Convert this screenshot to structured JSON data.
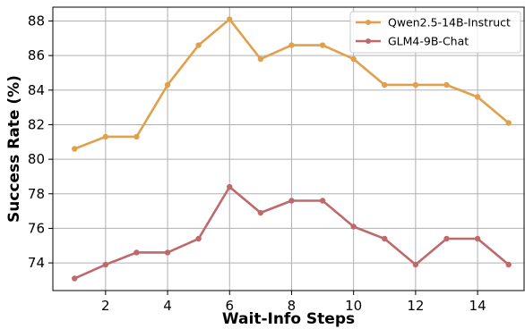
{
  "chart_data": {
    "type": "line",
    "title": "",
    "xlabel": "Wait-Info Steps",
    "ylabel": "Success Rate (%)",
    "x": [
      1,
      2,
      3,
      4,
      5,
      6,
      7,
      8,
      9,
      10,
      11,
      12,
      13,
      14,
      15
    ],
    "xlim": [
      0.3,
      15.5
    ],
    "ylim": [
      72.4,
      88.8
    ],
    "xticks": [
      2,
      4,
      6,
      8,
      10,
      12,
      14
    ],
    "yticks": [
      74,
      76,
      78,
      80,
      82,
      84,
      86,
      88
    ],
    "xtick_labels": [
      "2",
      "4",
      "6",
      "8",
      "10",
      "12",
      "14"
    ],
    "ytick_labels": [
      "74",
      "76",
      "78",
      "80",
      "82",
      "84",
      "86",
      "88"
    ],
    "grid": true,
    "legend_position": "top-right",
    "series": [
      {
        "name": "Qwen2.5-14B-Instruct",
        "color": "#E1A04B",
        "values": [
          80.6,
          81.3,
          81.3,
          84.3,
          86.6,
          88.1,
          85.8,
          86.6,
          86.6,
          85.8,
          84.3,
          84.3,
          84.3,
          83.6,
          82.1
        ]
      },
      {
        "name": "GLM4-9B-Chat",
        "color": "#BE6A6C",
        "values": [
          73.1,
          73.9,
          74.6,
          74.6,
          75.4,
          78.4,
          76.9,
          77.6,
          77.6,
          76.1,
          75.4,
          73.9,
          75.4,
          75.4,
          73.9
        ]
      }
    ]
  }
}
